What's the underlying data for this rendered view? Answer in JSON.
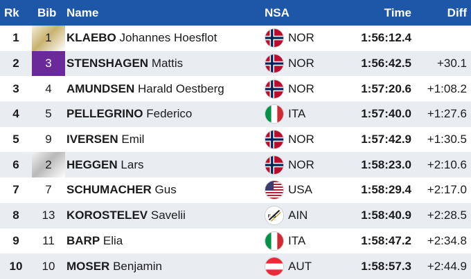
{
  "header": {
    "rank": "Rk",
    "bib": "Bib",
    "name": "Name",
    "nsa": "NSA",
    "time": "Time",
    "diff": "Diff"
  },
  "colors": {
    "header_bg": "#1e56a8",
    "alt_row_bg": "#e9edf2",
    "bib_purple": "#6b2a9a"
  },
  "rows": [
    {
      "rank": "1",
      "bib": "1",
      "bib_style": "gold",
      "last_name": "KLAEBO",
      "first_name": "Johannes Hoesflot",
      "nsa": "NOR",
      "flag": "norway-flag-icon",
      "time": "1:56:12.4",
      "diff": ""
    },
    {
      "rank": "2",
      "bib": "3",
      "bib_style": "purple",
      "last_name": "STENSHAGEN",
      "first_name": "Mattis",
      "nsa": "NOR",
      "flag": "norway-flag-icon",
      "time": "1:56:42.5",
      "diff": "+30.1"
    },
    {
      "rank": "3",
      "bib": "4",
      "bib_style": "",
      "last_name": "AMUNDSEN",
      "first_name": "Harald Oestberg",
      "nsa": "NOR",
      "flag": "norway-flag-icon",
      "time": "1:57:20.6",
      "diff": "+1:08.2"
    },
    {
      "rank": "4",
      "bib": "5",
      "bib_style": "",
      "last_name": "PELLEGRINO",
      "first_name": "Federico",
      "nsa": "ITA",
      "flag": "italy-flag-icon",
      "time": "1:57:40.0",
      "diff": "+1:27.6"
    },
    {
      "rank": "5",
      "bib": "9",
      "bib_style": "",
      "last_name": "IVERSEN",
      "first_name": "Emil",
      "nsa": "NOR",
      "flag": "norway-flag-icon",
      "time": "1:57:42.9",
      "diff": "+1:30.5"
    },
    {
      "rank": "6",
      "bib": "2",
      "bib_style": "silver",
      "last_name": "HEGGEN",
      "first_name": "Lars",
      "nsa": "NOR",
      "flag": "norway-flag-icon",
      "time": "1:58:23.0",
      "diff": "+2:10.6"
    },
    {
      "rank": "7",
      "bib": "7",
      "bib_style": "",
      "last_name": "SCHUMACHER",
      "first_name": "Gus",
      "nsa": "USA",
      "flag": "usa-flag-icon",
      "time": "1:58:29.4",
      "diff": "+2:17.0"
    },
    {
      "rank": "8",
      "bib": "13",
      "bib_style": "",
      "last_name": "KOROSTELEV",
      "first_name": "Savelii",
      "nsa": "AIN",
      "flag": "fis-logo-icon",
      "time": "1:58:40.9",
      "diff": "+2:28.5"
    },
    {
      "rank": "9",
      "bib": "11",
      "bib_style": "",
      "last_name": "BARP",
      "first_name": "Elia",
      "nsa": "ITA",
      "flag": "italy-flag-icon",
      "time": "1:58:47.2",
      "diff": "+2:34.8"
    },
    {
      "rank": "10",
      "bib": "10",
      "bib_style": "",
      "last_name": "MOSER",
      "first_name": "Benjamin",
      "nsa": "AUT",
      "flag": "austria-flag-icon",
      "time": "1:58:57.3",
      "diff": "+2:44.9"
    }
  ]
}
